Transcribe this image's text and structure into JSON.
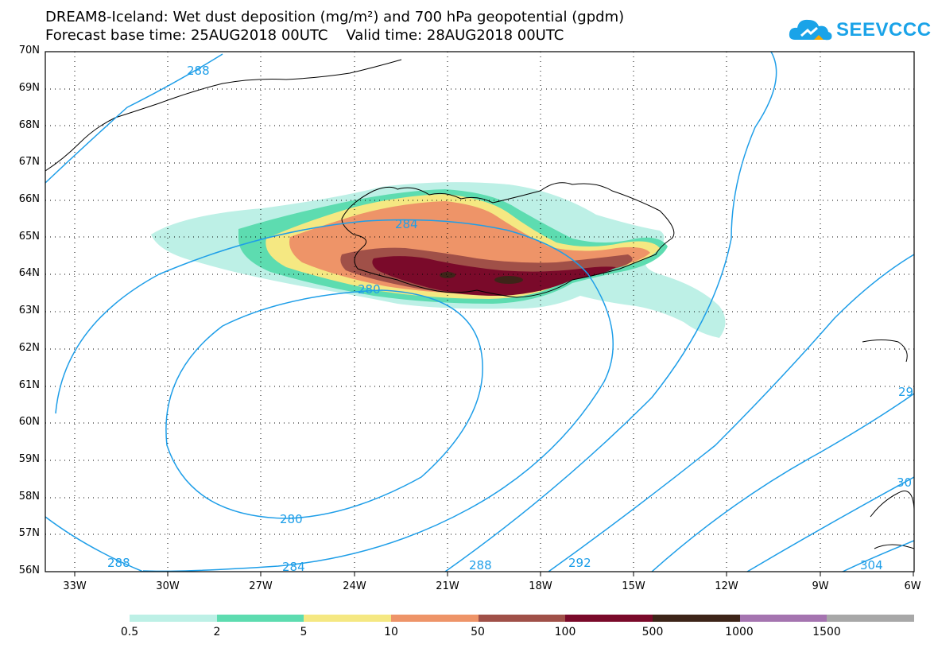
{
  "title_line1": "DREAM8-Iceland: Wet dust deposition (mg/m²) and 700 hPa geopotential (gpdm)",
  "title_line2": "Forecast base time: 25AUG2018 00UTC    Valid time: 28AUG2018 00UTC",
  "logo": {
    "text": "SEEVCCC",
    "icon": "cloud-logo-icon",
    "color": "#1aa3e8"
  },
  "axes": {
    "lat_labels": [
      "70N",
      "69N",
      "68N",
      "67N",
      "66N",
      "65N",
      "64N",
      "63N",
      "62N",
      "61N",
      "60N",
      "59N",
      "58N",
      "57N",
      "56N"
    ],
    "lon_labels": [
      "33W",
      "30W",
      "27W",
      "24W",
      "21W",
      "18W",
      "15W",
      "12W",
      "9W",
      "6W"
    ],
    "lat_range": [
      56,
      70
    ],
    "lon_range": [
      -34,
      -6
    ],
    "grid": "dotted"
  },
  "contours": {
    "variable": "700 hPa geopotential (gpdm)",
    "color": "#1e9ee8",
    "labels_shown": [
      "288",
      "284",
      "280",
      "280",
      "288",
      "284",
      "288",
      "292",
      "304",
      "29",
      "30"
    ]
  },
  "legend": {
    "labels": [
      "0.5",
      "2",
      "5",
      "10",
      "50",
      "100",
      "500",
      "1000",
      "1500"
    ],
    "colors": [
      "#bdf0e6",
      "#5ddcb0",
      "#f5e882",
      "#ee9468",
      "#a05048",
      "#7a0a2a",
      "#3d2418",
      "#a574b0",
      "#a8a8a8"
    ]
  }
}
